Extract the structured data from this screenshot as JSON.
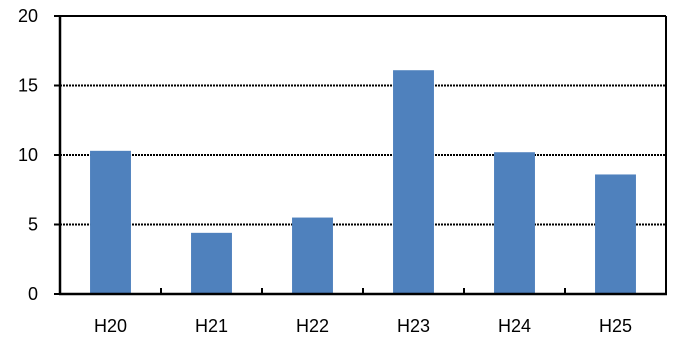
{
  "chart_data": {
    "type": "bar",
    "categories": [
      "H20",
      "H21",
      "H22",
      "H23",
      "H24",
      "H25"
    ],
    "values": [
      10.3,
      4.4,
      5.5,
      16.1,
      10.2,
      8.6
    ],
    "title": "",
    "xlabel": "",
    "ylabel": "",
    "ylim": [
      0,
      20
    ],
    "yticks": [
      0,
      5,
      10,
      15,
      20
    ],
    "grid": true,
    "grid_style": "dotted",
    "legend": false,
    "bar_color": "#4f81bd"
  }
}
